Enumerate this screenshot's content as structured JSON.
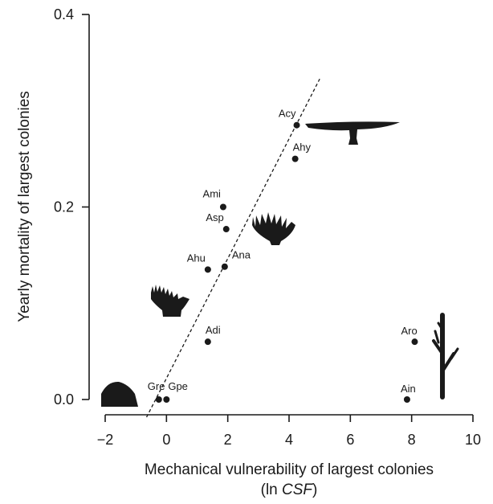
{
  "chart_data": {
    "type": "scatter",
    "xlabel": "Mechanical vulnerability of largest colonies",
    "xlabel_line2_prefix": "(ln ",
    "xlabel_line2_italic": "CSF",
    "xlabel_line2_suffix": ")",
    "ylabel": "Yearly mortality of largest colonies",
    "xlim": [
      -2,
      10
    ],
    "ylim": [
      0,
      0.4
    ],
    "x_ticks": [
      -2,
      0,
      2,
      4,
      6,
      8,
      10
    ],
    "x_tick_labels": [
      "−2",
      "0",
      "2",
      "4",
      "6",
      "8",
      "10"
    ],
    "y_ticks": [
      0,
      0.2,
      0.4
    ],
    "y_tick_labels": [
      "0.0",
      "0.2",
      "0.4"
    ],
    "points": [
      {
        "label": "Acy",
        "x": 4.25,
        "y": 0.285
      },
      {
        "label": "Ahy",
        "x": 4.2,
        "y": 0.25
      },
      {
        "label": "Ami",
        "x": 1.85,
        "y": 0.2
      },
      {
        "label": "Asp",
        "x": 1.95,
        "y": 0.177
      },
      {
        "label": "Ahu",
        "x": 1.35,
        "y": 0.135
      },
      {
        "label": "Ana",
        "x": 1.9,
        "y": 0.138
      },
      {
        "label": "Adi",
        "x": 1.35,
        "y": 0.06
      },
      {
        "label": "Gre",
        "x": -0.25,
        "y": 0.0
      },
      {
        "label": "Gpe",
        "x": 0.0,
        "y": 0.0
      },
      {
        "label": "Aro",
        "x": 8.1,
        "y": 0.06
      },
      {
        "label": "Ain",
        "x": 7.85,
        "y": 0.0
      }
    ],
    "trend_line": {
      "style": "dashed",
      "from": [
        -0.65,
        0.0
      ],
      "to": [
        5.0,
        0.333
      ]
    },
    "grid": false,
    "legend": "none",
    "colors": {
      "points": "#1a1a1a",
      "axes": "#1a1a1a",
      "silhouettes": "#1a1a1a"
    }
  }
}
